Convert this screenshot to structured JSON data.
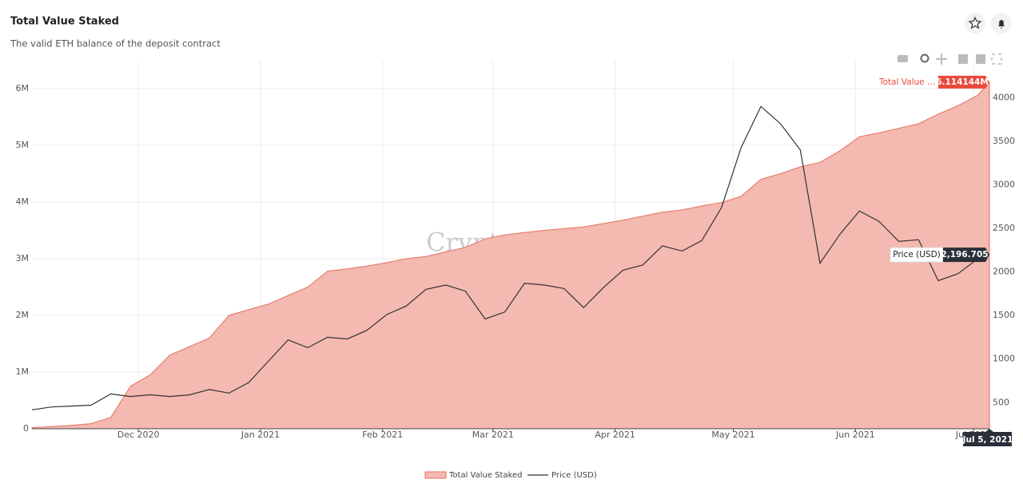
{
  "header": {
    "title": "Total Value Staked",
    "subtitle": "The valid ETH balance of the deposit contract"
  },
  "chart_data": {
    "type": "combo",
    "watermark": "CryptoQuant",
    "x": [
      "2020-11-04",
      "2020-11-09",
      "2020-11-14",
      "2020-11-19",
      "2020-11-24",
      "2020-11-29",
      "2020-12-04",
      "2020-12-09",
      "2020-12-14",
      "2020-12-19",
      "2020-12-24",
      "2020-12-29",
      "2021-01-03",
      "2021-01-08",
      "2021-01-13",
      "2021-01-18",
      "2021-01-23",
      "2021-01-28",
      "2021-02-02",
      "2021-02-07",
      "2021-02-12",
      "2021-02-17",
      "2021-02-22",
      "2021-02-27",
      "2021-03-04",
      "2021-03-09",
      "2021-03-14",
      "2021-03-19",
      "2021-03-24",
      "2021-03-29",
      "2021-04-03",
      "2021-04-08",
      "2021-04-13",
      "2021-04-18",
      "2021-04-23",
      "2021-04-28",
      "2021-05-03",
      "2021-05-08",
      "2021-05-13",
      "2021-05-18",
      "2021-05-23",
      "2021-05-28",
      "2021-06-02",
      "2021-06-07",
      "2021-06-12",
      "2021-06-17",
      "2021-06-22",
      "2021-06-27",
      "2021-07-02",
      "2021-07-05"
    ],
    "series": [
      {
        "name": "Total Value Staked",
        "color": "#f4b9b0",
        "line_color": "#e66f60",
        "values": [
          20000,
          40000,
          60000,
          90000,
          200000,
          750000,
          950000,
          1300000,
          1450000,
          1600000,
          2000000,
          2100000,
          2200000,
          2350000,
          2500000,
          2780000,
          2820000,
          2870000,
          2930000,
          3000000,
          3040000,
          3120000,
          3200000,
          3350000,
          3420000,
          3460000,
          3500000,
          3530000,
          3560000,
          3620000,
          3680000,
          3750000,
          3820000,
          3860000,
          3930000,
          3990000,
          4100000,
          4400000,
          4500000,
          4620000,
          4700000,
          4900000,
          5150000,
          5220000,
          5300000,
          5380000,
          5550000,
          5700000,
          5880000,
          6114144
        ]
      },
      {
        "name": "Price (USD)",
        "color": "#333333",
        "axis": "y2",
        "values": [
          417,
          450,
          460,
          470,
          600,
          570,
          590,
          570,
          590,
          650,
          610,
          730,
          975,
          1220,
          1130,
          1250,
          1230,
          1330,
          1510,
          1610,
          1800,
          1850,
          1780,
          1460,
          1540,
          1870,
          1850,
          1810,
          1590,
          1820,
          2020,
          2080,
          2300,
          2240,
          2360,
          2740,
          3430,
          3900,
          3700,
          3400,
          2100,
          2430,
          2700,
          2580,
          2350,
          2370,
          1900,
          1980,
          2150,
          2196.705
        ]
      }
    ],
    "xlim": [
      "2020-11-04",
      "2021-07-05"
    ],
    "xticks": [
      {
        "value": "2020-12-01",
        "label": "Dec 2020"
      },
      {
        "value": "2021-01-01",
        "label": "Jan 2021"
      },
      {
        "value": "2021-02-01",
        "label": "Feb 2021"
      },
      {
        "value": "2021-03-01",
        "label": "Mar 2021"
      },
      {
        "value": "2021-04-01",
        "label": "Apr 2021"
      },
      {
        "value": "2021-05-01",
        "label": "May 2021"
      },
      {
        "value": "2021-06-01",
        "label": "Jun 2021"
      },
      {
        "value": "2021-07-01",
        "label": "Jul 2021"
      }
    ],
    "ylim": [
      0,
      6500000
    ],
    "yticks": [
      0,
      {
        "value": 1000000,
        "label": "1M"
      },
      {
        "value": 2000000,
        "label": "2M"
      },
      {
        "value": 3000000,
        "label": "3M"
      },
      {
        "value": 4000000,
        "label": "4M"
      },
      {
        "value": 5000000,
        "label": "5M"
      },
      {
        "value": 6000000,
        "label": "6M"
      }
    ],
    "y2lim": [
      200,
      4430
    ],
    "y2ticks": [
      500,
      1000,
      1500,
      2000,
      2500,
      3000,
      3500,
      4000
    ],
    "grid": true,
    "tags": {
      "area_name": "Total Value ...",
      "area_value": "6.114144M",
      "line_name": "Price (USD)",
      "line_value": "2,196.705",
      "date": "Jul 5, 2021"
    }
  }
}
